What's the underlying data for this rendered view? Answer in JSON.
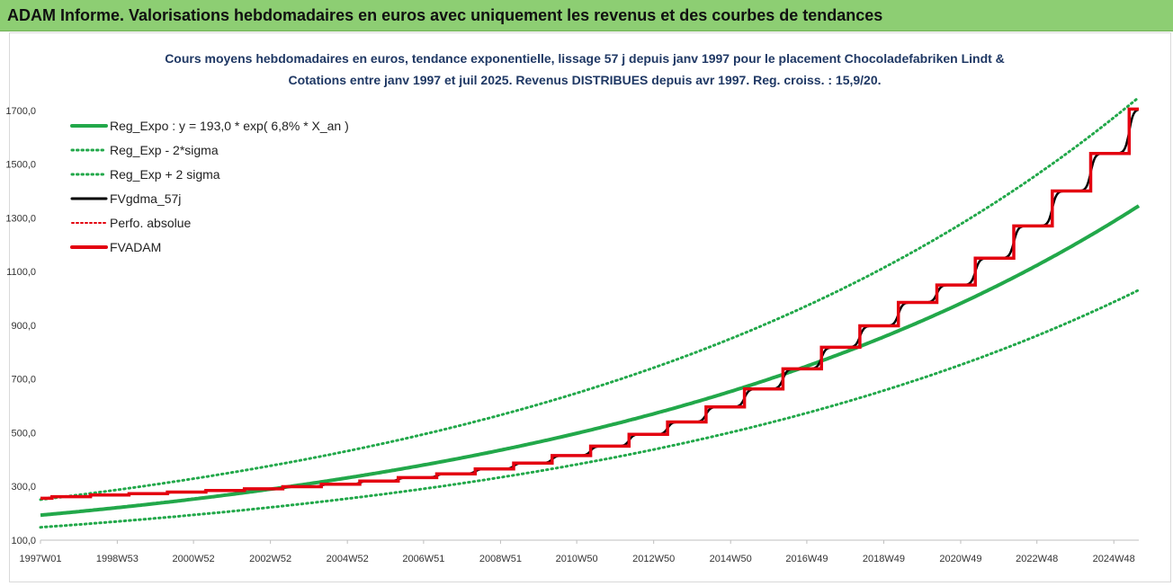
{
  "header": {
    "title": "ADAM Informe. Valorisations hebdomadaires en euros avec uniquement les revenus et des courbes de tendances"
  },
  "chart_data": {
    "type": "line",
    "title_line1": "Cours moyens hebdomadaires en euros, tendance exponentielle, lissage 57 j depuis janv 1997 pour le placement Chocoladefabriken Lindt &",
    "title_line2": "Cotations entre janv 1997 et juil 2025. Revenus DISTRIBUES depuis avr 1997. Reg. croiss. : 15,9/20.",
    "xlabel": "",
    "ylabel": "",
    "ylim": [
      100,
      1800
    ],
    "yticks": [
      "100,0",
      "300,0",
      "500,0",
      "700,0",
      "900,0",
      "1100,0",
      "1300,0",
      "1500,0",
      "1700,0"
    ],
    "xticks": [
      "1997W01",
      "1998W53",
      "2000W52",
      "2002W52",
      "2004W52",
      "2006W51",
      "2008W51",
      "2010W50",
      "2012W50",
      "2014W50",
      "2016W49",
      "2018W49",
      "2020W49",
      "2022W48",
      "2024W48"
    ],
    "x_range_years": [
      1997.0,
      2025.55
    ],
    "grid": false,
    "legend_position": "top-left",
    "series": [
      {
        "name": "Reg_Expo : y = 193,0 * exp( 6,8% *  X_an )",
        "color": "#22a84a",
        "style": "solid-thick",
        "formula": "193.0*exp(0.068*t)",
        "values": [
          [
            1997,
            193
          ],
          [
            2005,
            333
          ],
          [
            2015,
            659
          ],
          [
            2025.55,
            1360
          ]
        ]
      },
      {
        "name": "Reg_Exp - 2*sigma",
        "color": "#22a84a",
        "style": "dotted",
        "formula": "148*exp(0.068*t)",
        "values": [
          [
            1997,
            148
          ],
          [
            2005,
            256
          ],
          [
            2015,
            506
          ],
          [
            2025.55,
            1040
          ]
        ]
      },
      {
        "name": "Reg_Exp + 2 sigma",
        "color": "#22a84a",
        "style": "dotted",
        "formula": "251*exp(0.068*t)",
        "values": [
          [
            1997,
            251
          ],
          [
            2005,
            434
          ],
          [
            2015,
            858
          ],
          [
            2025.55,
            1760
          ]
        ]
      },
      {
        "name": "FVgdma_57j",
        "color": "#000000",
        "style": "solid",
        "values": [
          [
            1997,
            258
          ],
          [
            2005,
            312
          ],
          [
            2015,
            660
          ],
          [
            2025.55,
            1690
          ]
        ]
      },
      {
        "name": "Perfo. absolue",
        "color": "#e3000f",
        "style": "dotted",
        "values": []
      },
      {
        "name": "FVADAM",
        "color": "#e3000f",
        "style": "step-thick",
        "steps": [
          [
            1997.3,
            262
          ],
          [
            1998.3,
            268
          ],
          [
            1999.3,
            273
          ],
          [
            2000.3,
            279
          ],
          [
            2001.3,
            285
          ],
          [
            2002.3,
            291
          ],
          [
            2003.3,
            299
          ],
          [
            2004.3,
            308
          ],
          [
            2005.3,
            320
          ],
          [
            2006.3,
            333
          ],
          [
            2007.3,
            347
          ],
          [
            2008.3,
            365
          ],
          [
            2009.3,
            387
          ],
          [
            2010.3,
            415
          ],
          [
            2011.3,
            450
          ],
          [
            2012.3,
            494
          ],
          [
            2013.3,
            540
          ],
          [
            2014.3,
            596
          ],
          [
            2015.3,
            663
          ],
          [
            2016.3,
            738
          ],
          [
            2017.3,
            818
          ],
          [
            2018.3,
            898
          ],
          [
            2019.3,
            985
          ],
          [
            2020.3,
            1050
          ],
          [
            2021.3,
            1150
          ],
          [
            2022.3,
            1270
          ],
          [
            2023.3,
            1400
          ],
          [
            2024.3,
            1540
          ],
          [
            2025.3,
            1705
          ]
        ]
      }
    ]
  }
}
